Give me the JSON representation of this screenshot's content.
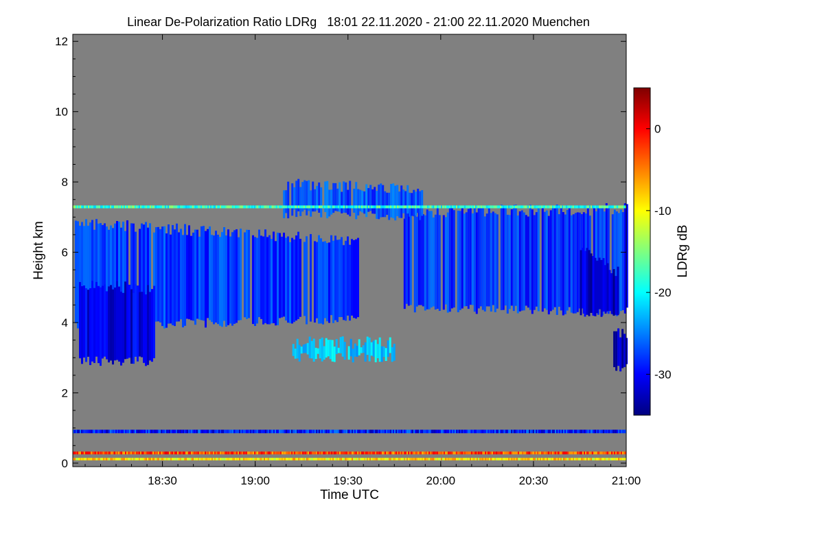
{
  "chart_data": {
    "type": "heatmap",
    "title": "Linear De-Polarization Ratio LDRg   18:01 22.11.2020 - 21:00 22.11.2020 Muenchen",
    "xlabel": "Time UTC",
    "ylabel": "Height km",
    "xlim": [
      18.0167,
      21.0
    ],
    "ylim": [
      -0.1,
      12.2
    ],
    "x_ticks": [
      {
        "value": 18.5,
        "label": "18:30"
      },
      {
        "value": 19.0,
        "label": "19:00"
      },
      {
        "value": 19.5,
        "label": "19:30"
      },
      {
        "value": 20.0,
        "label": "20:00"
      },
      {
        "value": 20.5,
        "label": "20:30"
      },
      {
        "value": 21.0,
        "label": "21:00"
      }
    ],
    "y_ticks": [
      {
        "value": 0,
        "label": "0"
      },
      {
        "value": 2,
        "label": "2"
      },
      {
        "value": 4,
        "label": "4"
      },
      {
        "value": 6,
        "label": "6"
      },
      {
        "value": 8,
        "label": "8"
      },
      {
        "value": 10,
        "label": "10"
      },
      {
        "value": 12,
        "label": "12"
      }
    ],
    "colorbar": {
      "label": "LDRg dB",
      "range": [
        -35,
        5
      ],
      "ticks": [
        {
          "value": 0,
          "label": "0"
        },
        {
          "value": -10,
          "label": "-10"
        },
        {
          "value": -20,
          "label": "-20"
        },
        {
          "value": -30,
          "label": "-30"
        }
      ],
      "colormap": [
        "#00007f",
        "#0000ff",
        "#007fff",
        "#00ffff",
        "#7fff7f",
        "#ffff00",
        "#ff7f00",
        "#ff0000",
        "#7f0000"
      ]
    },
    "background_color": "#808080",
    "cloud_regions": [
      {
        "name": "cirrus-main",
        "x_start": 18.0167,
        "x_end": 19.55,
        "bottom_start": 3.9,
        "bottom_end": 4.1,
        "top_start": 6.9,
        "top_end": 6.4,
        "ldr": -28
      },
      {
        "name": "cirrus-deep-core",
        "x_start": 18.05,
        "x_end": 18.45,
        "bottom_start": 2.9,
        "bottom_end": 2.9,
        "top_start": 5.2,
        "top_end": 5.0,
        "ldr": -31
      },
      {
        "name": "cirrus-east",
        "x_start": 19.8,
        "x_end": 21.0,
        "bottom_start": 4.4,
        "bottom_end": 4.3,
        "top_start": 7.2,
        "top_end": 7.3,
        "ldr": -28
      },
      {
        "name": "cirrus-east-core",
        "x_start": 20.75,
        "x_end": 20.95,
        "bottom_start": 4.3,
        "bottom_end": 4.2,
        "top_start": 6.2,
        "top_end": 5.5,
        "ldr": -32
      },
      {
        "name": "fallstreak-east",
        "x_start": 20.93,
        "x_end": 21.0,
        "bottom_start": 2.7,
        "bottom_end": 2.7,
        "top_start": 3.8,
        "top_end": 3.8,
        "ldr": -33
      },
      {
        "name": "ice-virga-midlevel",
        "x_start": 19.2,
        "x_end": 19.75,
        "bottom_start": 3.0,
        "bottom_end": 3.0,
        "top_start": 3.5,
        "top_end": 3.5,
        "ldr": -22
      },
      {
        "name": "upper-fragments",
        "x_start": 19.15,
        "x_end": 19.9,
        "bottom_start": 7.1,
        "bottom_end": 7.0,
        "top_start": 8.0,
        "top_end": 7.9,
        "ldr": -27
      },
      {
        "name": "boundary-layer-high",
        "x_start": 18.0167,
        "x_end": 21.0,
        "bottom_start": 0.25,
        "bottom_end": 0.25,
        "top_start": 0.33,
        "top_end": 0.33,
        "ldr": -3
      },
      {
        "name": "boundary-layer-low",
        "x_start": 18.0167,
        "x_end": 21.0,
        "bottom_start": 0.08,
        "bottom_end": 0.08,
        "top_start": 0.15,
        "top_end": 0.15,
        "ldr": -9
      },
      {
        "name": "aerosol-speckle",
        "x_start": 18.0167,
        "x_end": 21.0,
        "bottom_start": 0.85,
        "bottom_end": 0.85,
        "top_start": 0.95,
        "top_end": 0.95,
        "ldr": -29
      },
      {
        "name": "layer-7km-line",
        "x_start": 18.0167,
        "x_end": 21.0,
        "bottom_start": 7.25,
        "bottom_end": 7.25,
        "top_start": 7.33,
        "top_end": 7.33,
        "ldr": -18
      }
    ]
  }
}
